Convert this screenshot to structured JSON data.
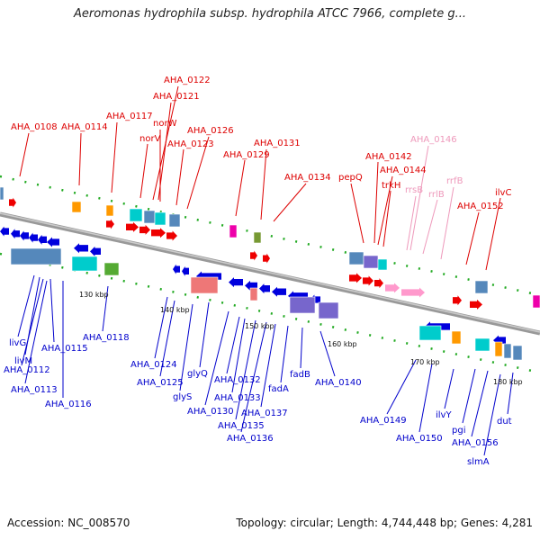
{
  "title": "Aeromonas hydrophila subsp. hydrophila ATCC 7966, complete g...",
  "footer": {
    "accession": "Accession: NC_008570",
    "topology": "Topology: circular; Length: 4,744,448 bp; Genes: 4,281"
  },
  "ticks": [
    "130 kbp",
    "140 kbp",
    "150 kbp",
    "160 kbp",
    "170 kbp",
    "180 kbp"
  ],
  "top_labels": [
    "AHA_0108",
    "AHA_0114",
    "AHA_0117",
    "AHA_0122",
    "AHA_0121",
    "norW",
    "norV",
    "AHA_0126",
    "AHA_0123",
    "AHA_0129",
    "AHA_0131",
    "AHA_0134",
    "pepQ",
    "AHA_0142",
    "trkH",
    "AHA_0144",
    "AHA_0146",
    "rrsB",
    "rrlB",
    "rrfB",
    "AHA_0152",
    "ilvC"
  ],
  "bottom_labels": [
    "livG",
    "livM",
    "AHA_0115",
    "AHA_0112",
    "AHA_0113",
    "AHA_0116",
    "AHA_0118",
    "AHA_0124",
    "AHA_0125",
    "glyS",
    "glyQ",
    "AHA_0130",
    "AHA_0132",
    "AHA_0133",
    "AHA_0135",
    "AHA_0136",
    "AHA_0137",
    "fadA",
    "fadB",
    "AHA_0140",
    "AHA_0149",
    "AHA_0150",
    "ilvY",
    "pgi",
    "AHA_0156",
    "slmA",
    "dut"
  ],
  "colors": {
    "forward": "#ee0000",
    "reverse": "#0000dd",
    "rna": "#ff99cc",
    "backbone": "#888888",
    "label_red": "#dd0000",
    "label_blue": "#0000cc",
    "label_pink": "#ee99bb",
    "feature_cyan": "#00cccc",
    "feature_orange": "#ff9900",
    "feature_green": "#55aa33",
    "feature_steel": "#5588bb",
    "feature_purple": "#7766cc",
    "feature_salmon": "#ee7777",
    "feature_magenta": "#ee00aa",
    "feature_olive": "#779933",
    "dot_green": "#22aa22"
  }
}
